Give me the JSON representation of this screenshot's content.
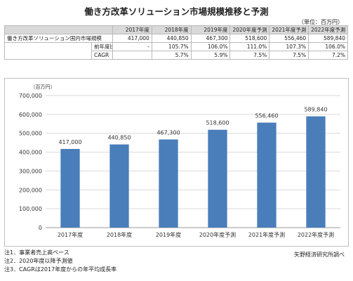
{
  "title": "働き方改革ソリューション市場規模推移と予測",
  "unit": "（単位：百万円）",
  "table": {
    "headers": [
      "2017年度",
      "2018年度",
      "2019年度",
      "2020年度予測",
      "2021年度予測",
      "2022年度予測"
    ],
    "rows": [
      {
        "label": "働き方改革ソリューション国内市場規模",
        "values": [
          "417,000",
          "440,850",
          "467,300",
          "518,600",
          "556,460",
          "589,840"
        ]
      },
      {
        "label": "前年度比",
        "values": [
          "-",
          "105.7%",
          "106.0%",
          "111.0%",
          "107.3%",
          "106.0%"
        ]
      },
      {
        "label": "CAGR",
        "values": [
          "",
          "5.7%",
          "5.9%",
          "7.5%",
          "7.5%",
          "7.2%"
        ]
      }
    ]
  },
  "chart_data": {
    "type": "bar",
    "categories": [
      "2017年度",
      "2018年度",
      "2019年度",
      "2020年度予測",
      "2021年度予測",
      "2022年度予測"
    ],
    "values": [
      417000,
      440850,
      467300,
      518600,
      556460,
      589840
    ],
    "data_labels": [
      "417,000",
      "440,850",
      "467,300",
      "518,600",
      "556,460",
      "589,840"
    ],
    "ylabel": "（百万円）",
    "ylim": [
      0,
      700000
    ],
    "yticks": [
      0,
      100000,
      200000,
      300000,
      400000,
      500000,
      600000,
      700000
    ],
    "ytick_labels": [
      "0",
      "100,000",
      "200,000",
      "300,000",
      "400,000",
      "500,000",
      "600,000",
      "700,000"
    ],
    "grid": true,
    "bar_color": "#4a7ebb"
  },
  "notes": [
    "注1．事業者売上高ベース",
    "注2．2020年度以降予測値",
    "注3．CAGRは2017年度からの年平均成長率"
  ],
  "source": "矢野経済研究所調べ"
}
